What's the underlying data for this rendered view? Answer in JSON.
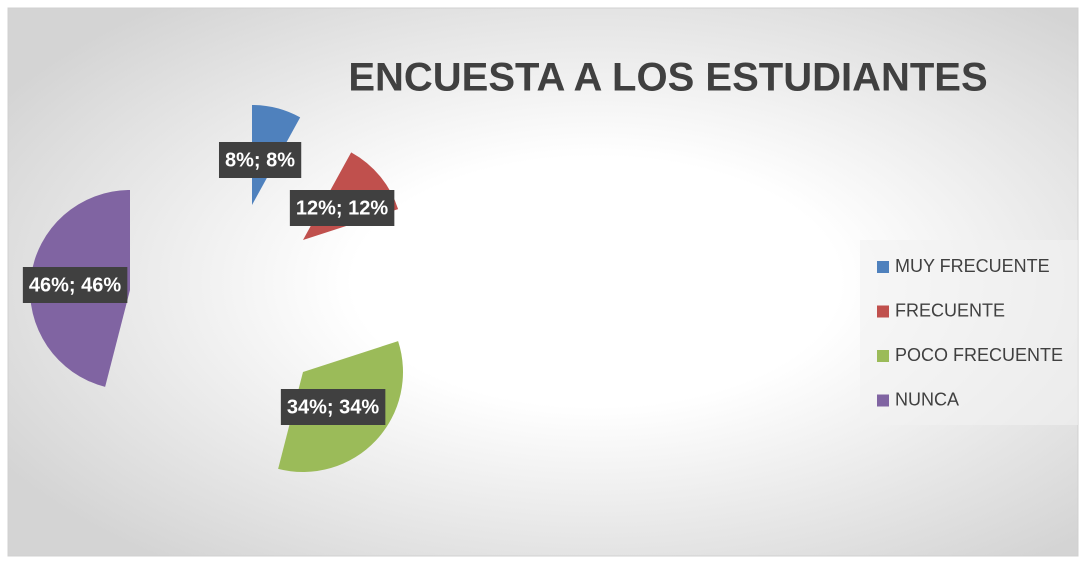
{
  "chart_data": {
    "type": "pie",
    "title": "ENCUESTA A LOS ESTUDIANTES",
    "categories": [
      "MUY FRECUENTE",
      "FRECUENTE",
      "POCO FRECUENTE",
      "NUNCA"
    ],
    "values": [
      8,
      12,
      34,
      46
    ],
    "value_labels": [
      "8%; 8%",
      "12%; 12%",
      "34%; 34%",
      "46%; 46%"
    ],
    "colors": [
      "#4f81bd",
      "#c0504d",
      "#9bbb59",
      "#8064a2"
    ],
    "legend": "right"
  }
}
